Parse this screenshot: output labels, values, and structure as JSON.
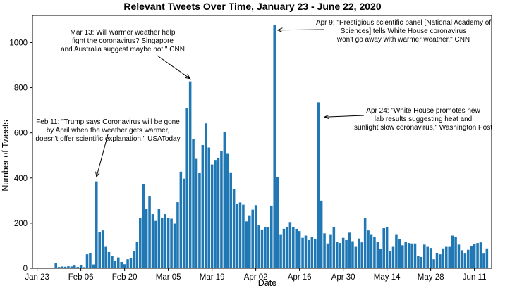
{
  "chart_data": {
    "type": "bar",
    "title": "Relevant Tweets Over Time, January 23 - June 22, 2020",
    "xlabel": "Date",
    "ylabel": "Number of Tweets",
    "ylim": [
      0,
      1120
    ],
    "yticks": [
      0,
      200,
      400,
      600,
      800,
      1000
    ],
    "xticks": [
      {
        "label": "Jan 23",
        "day": 0
      },
      {
        "label": "Feb 06",
        "day": 14
      },
      {
        "label": "Feb 20",
        "day": 28
      },
      {
        "label": "Mar 05",
        "day": 42
      },
      {
        "label": "Mar 19",
        "day": 56
      },
      {
        "label": "Apr 02",
        "day": 70
      },
      {
        "label": "Apr 16",
        "day": 84
      },
      {
        "label": "Apr 30",
        "day": 98
      },
      {
        "label": "May 14",
        "day": 112
      },
      {
        "label": "May 28",
        "day": 126
      },
      {
        "label": "Jun 11",
        "day": 140
      }
    ],
    "bar_color": "#1f77b4",
    "grid": false,
    "series": [
      {
        "start_date": "2020-01-23",
        "values": [
          0,
          1,
          1,
          1,
          2,
          3,
          22,
          6,
          8,
          7,
          9,
          8,
          12,
          6,
          15,
          5,
          62,
          68,
          17,
          385,
          160,
          168,
          95,
          72,
          55,
          33,
          48,
          28,
          18,
          40,
          45,
          75,
          118,
          222,
          372,
          262,
          318,
          240,
          210,
          262,
          222,
          240,
          222,
          220,
          198,
          293,
          428,
          397,
          710,
          828,
          573,
          485,
          422,
          546,
          642,
          535,
          460,
          480,
          490,
          520,
          602,
          510,
          425,
          350,
          285,
          292,
          282,
          208,
          232,
          260,
          280,
          190,
          172,
          182,
          182,
          278,
          1078,
          405,
          148,
          175,
          182,
          205,
          182,
          175,
          165,
          135,
          145,
          125,
          138,
          130,
          735,
          300,
          155,
          110,
          148,
          182,
          118,
          112,
          135,
          125,
          158,
          120,
          95,
          132,
          115,
          222,
          168,
          148,
          140,
          118,
          85,
          178,
          182,
          78,
          95,
          148,
          130,
          102,
          118,
          112,
          110,
          110,
          55,
          50,
          105,
          95,
          90,
          40,
          68,
          62,
          88,
          95,
          95,
          145,
          138,
          105,
          80,
          65,
          82,
          98,
          108,
          112,
          115,
          65,
          88
        ]
      }
    ],
    "annotations": [
      {
        "lines": [
          "Feb 11: \"Trump says Coronavirus will be gone",
          "by April when the weather  gets warmer,",
          "doesn't offer scientific explanation,\" USAToday"
        ],
        "target_day": 19,
        "target_value": 405
      },
      {
        "lines": [
          "Mar 13: Will warmer weather help",
          "fight the coronavirus? Singapore",
          "and Australia suggest maybe not,\" CNN"
        ],
        "target_day": 49,
        "target_value": 840
      },
      {
        "lines": [
          "Apr 9: \"Prestigious scientific panel [National Academy of",
          "Sciences] tells White House coronavirus",
          "won't go away with warmer weather,\" CNN"
        ],
        "target_day": 77,
        "target_value": 1055
      },
      {
        "lines": [
          "Apr 24: \"White House promotes new",
          "lab results suggesting heat and",
          "sunlight slow coronavirus,\" Washington Post"
        ],
        "target_day": 92,
        "target_value": 670
      }
    ]
  }
}
